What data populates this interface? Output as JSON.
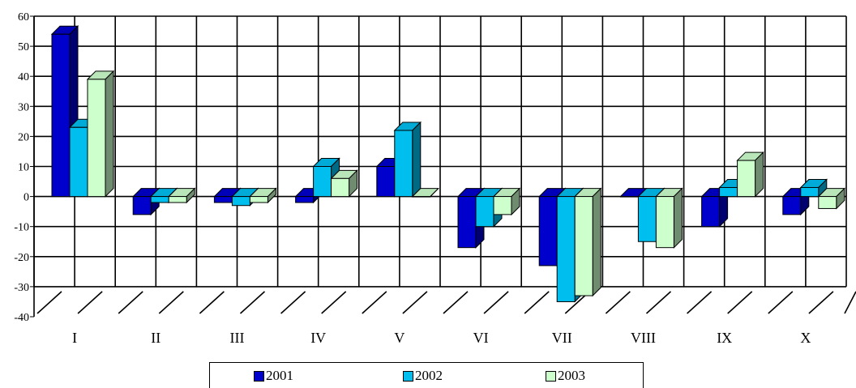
{
  "chart_data": {
    "type": "bar",
    "categories": [
      "I",
      "II",
      "III",
      "IV",
      "V",
      "VI",
      "VII",
      "VIII",
      "IX",
      "X"
    ],
    "series": [
      {
        "name": "2001",
        "color": "#0000cc",
        "values": [
          54,
          -6,
          -2,
          -2,
          10,
          -17,
          -23,
          0,
          -10,
          -6
        ]
      },
      {
        "name": "2002",
        "color": "#00bfef",
        "values": [
          23,
          -2,
          -3,
          10,
          22,
          -10,
          -35,
          -15,
          3,
          3
        ]
      },
      {
        "name": "2003",
        "color": "#ccffcc",
        "values": [
          39,
          -2,
          -2,
          6,
          0,
          -6,
          -33,
          -17,
          12,
          -4
        ]
      }
    ],
    "ylim": [
      -40,
      60
    ],
    "yticks": [
      60,
      50,
      40,
      30,
      20,
      10,
      0,
      -10,
      -20,
      -30,
      -40
    ],
    "grid": true,
    "legend_position": "bottom"
  }
}
